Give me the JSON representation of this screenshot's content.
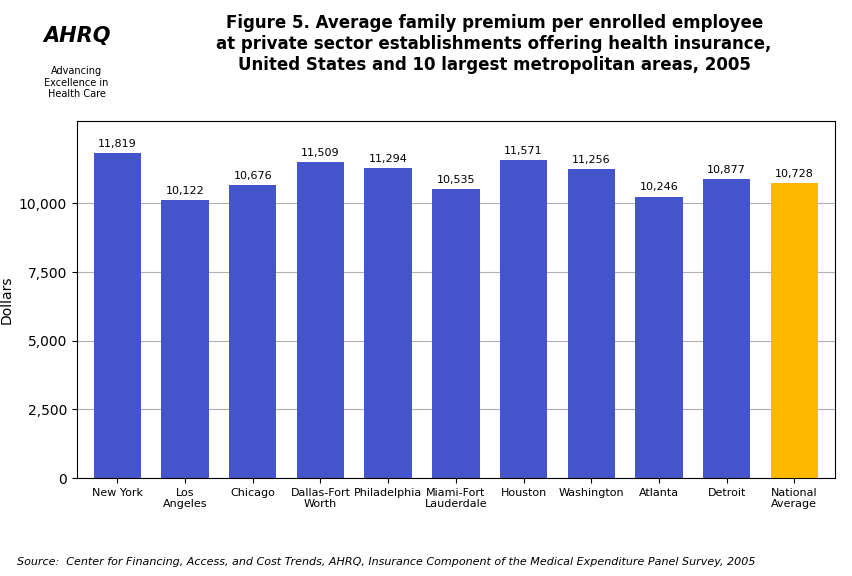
{
  "chart_data": {
    "type": "bar",
    "title": "Figure 5. Average family premium per enrolled employee\nat private sector establishments offering health insurance,\nUnited States and 10 largest metropolitan areas, 2005",
    "ylabel": "Dollars",
    "categories": [
      "New York",
      "Los\nAngeles",
      "Chicago",
      "Dallas-Fort\nWorth",
      "Philadelphia",
      "Miami-Fort\nLauderdale",
      "Houston",
      "Washington",
      "Atlanta",
      "Detroit",
      "National\nAverage"
    ],
    "values": [
      11819,
      10122,
      10676,
      11509,
      11294,
      10535,
      11571,
      11256,
      10246,
      10877,
      10728
    ],
    "value_labels": [
      "11,819",
      "10,122",
      "10,676",
      "11,509",
      "11,294",
      "10,535",
      "11,571",
      "11,256",
      "10,246",
      "10,877",
      "10,728"
    ],
    "data_labels": true,
    "colors": [
      "#4455cc",
      "#4455cc",
      "#4455cc",
      "#4455cc",
      "#4455cc",
      "#4455cc",
      "#4455cc",
      "#4455cc",
      "#4455cc",
      "#4455cc",
      "#FFB800"
    ],
    "ylim": [
      0,
      13000
    ],
    "yticks": [
      0,
      {
        "value": 2500,
        "label": "2,500"
      },
      {
        "value": 5000,
        "label": "5,000"
      },
      {
        "value": 7500,
        "label": "7,500"
      },
      {
        "value": 10000,
        "label": "10,000"
      }
    ],
    "grid": true,
    "annotations": [
      "AHRQ",
      "Advancing\nExcellence in\nHealth Care",
      "Source:  Center for Financing, Access, and Cost Trends, AHRQ, Insurance Component of the Medical Expenditure Panel Survey, 2005"
    ]
  }
}
